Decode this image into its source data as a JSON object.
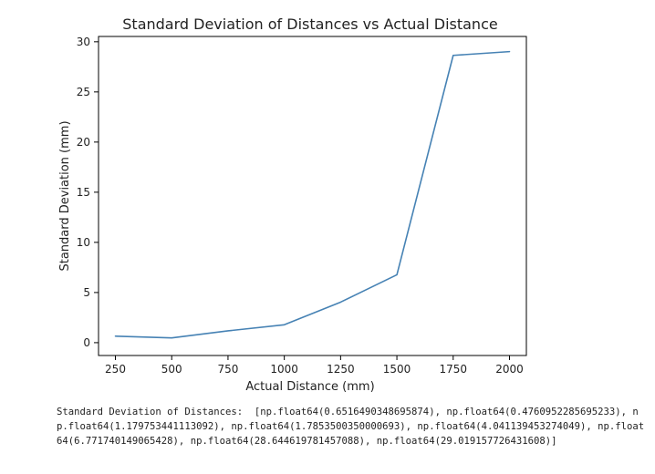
{
  "chart_data": {
    "type": "line",
    "title": "Standard Deviation of Distances vs Actual Distance",
    "xlabel": "Actual Distance (mm)",
    "ylabel": "Standard Deviation (mm)",
    "x": [
      250,
      500,
      750,
      1000,
      1250,
      1500,
      1750,
      2000
    ],
    "series": [
      {
        "values": [
          0.6516490348695874,
          0.4760952285695233,
          1.179753441113092,
          1.7853500350000693,
          4.041139453274049,
          6.771740149065428,
          28.644619781457088,
          29.019157726431608
        ],
        "color": "#4682b4"
      }
    ],
    "xlim": [
      175,
      2075
    ],
    "ylim": [
      -1.28,
      30.53
    ],
    "xticks": [
      250,
      500,
      750,
      1000,
      1250,
      1500,
      1750,
      2000
    ],
    "yticks": [
      0,
      5,
      10,
      15,
      20,
      25,
      30
    ],
    "grid": false,
    "legend": "none"
  },
  "output": {
    "text": "Standard Deviation of Distances:  [np.float64(0.6516490348695874), np.float64(0.4760952285695233), np.float64(1.179753441113092), np.float64(1.7853500350000693), np.float64(4.041139453274049), np.float64(6.771740149065428), np.float64(28.644619781457088), np.float64(29.019157726431608)]"
  }
}
